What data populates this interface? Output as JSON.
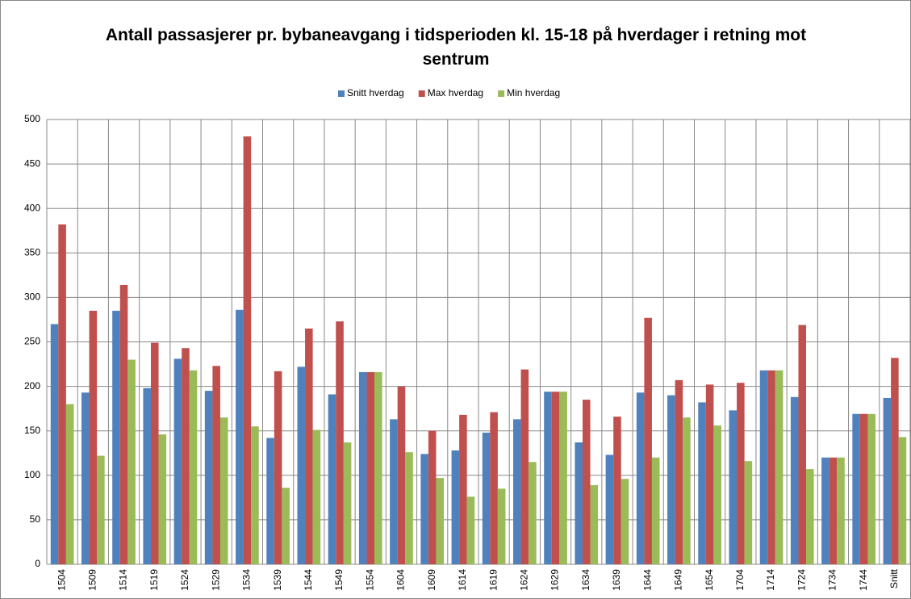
{
  "chart_data": {
    "type": "bar",
    "title": "Antall passasjerer pr. bybaneavgang i tidsperioden kl. 15-18 på hverdager i retning mot sentrum",
    "categories": [
      "1504",
      "1509",
      "1514",
      "1519",
      "1524",
      "1529",
      "1534",
      "1539",
      "1544",
      "1549",
      "1554",
      "1604",
      "1609",
      "1614",
      "1619",
      "1624",
      "1629",
      "1634",
      "1639",
      "1644",
      "1649",
      "1654",
      "1704",
      "1714",
      "1724",
      "1734",
      "1744",
      "Snitt"
    ],
    "series": [
      {
        "name": "Snitt hverdag",
        "color": "#4f81bd",
        "values": [
          270,
          193,
          285,
          198,
          231,
          195,
          286,
          142,
          222,
          191,
          216,
          163,
          124,
          128,
          148,
          163,
          194,
          137,
          123,
          193,
          190,
          182,
          173,
          218,
          188,
          120,
          169,
          187
        ]
      },
      {
        "name": "Max hverdag",
        "color": "#c0504d",
        "values": [
          382,
          285,
          314,
          249,
          243,
          223,
          481,
          217,
          265,
          273,
          216,
          200,
          150,
          168,
          171,
          219,
          194,
          185,
          166,
          277,
          207,
          202,
          204,
          218,
          269,
          120,
          169,
          232
        ]
      },
      {
        "name": "Min hverdag",
        "color": "#9bbb59",
        "values": [
          180,
          122,
          230,
          146,
          218,
          165,
          155,
          86,
          151,
          137,
          216,
          126,
          97,
          76,
          85,
          115,
          194,
          89,
          96,
          120,
          165,
          156,
          116,
          218,
          107,
          120,
          169,
          143
        ]
      }
    ],
    "ylim": [
      0,
      500
    ],
    "yticks": [
      0,
      50,
      100,
      150,
      200,
      250,
      300,
      350,
      400,
      450,
      500
    ],
    "grid": true,
    "legend": "top"
  }
}
